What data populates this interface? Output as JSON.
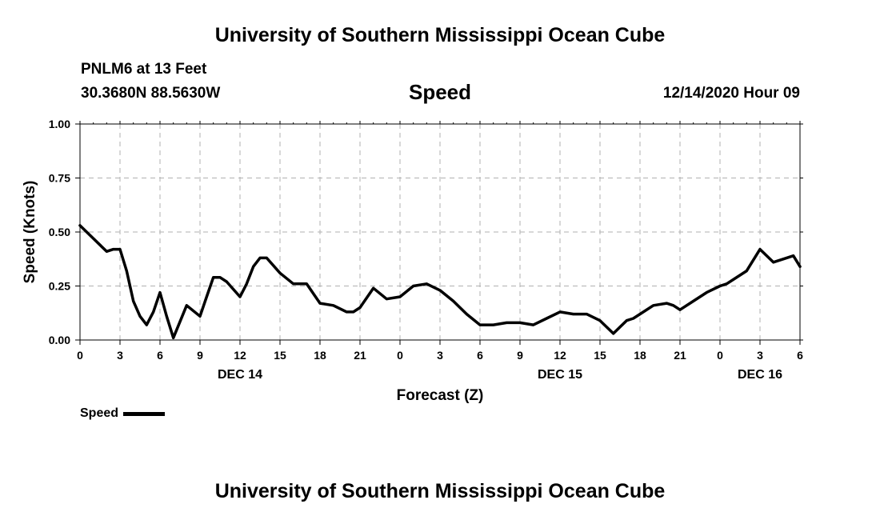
{
  "header": {
    "title_top": "University of Southern Mississippi Ocean Cube",
    "station": "PNLM6 at 13 Feet",
    "coords": "30.3680N 88.5630W",
    "variable": "Speed",
    "issued": "12/14/2020 Hour 09"
  },
  "footer": {
    "title_bottom": "University of Southern Mississippi Ocean Cube"
  },
  "legend": {
    "label": "Speed",
    "color": "#000000"
  },
  "chart_data": {
    "type": "line",
    "title": "Speed",
    "xlabel": "Forecast (Z)",
    "ylabel": "Speed (Knots)",
    "xlim": [
      0,
      54
    ],
    "ylim": [
      0,
      1
    ],
    "grid": true,
    "legend_position": "bottom-left",
    "x_ticks": [
      0,
      3,
      6,
      9,
      12,
      15,
      18,
      21,
      24,
      27,
      30,
      33,
      36,
      39,
      42,
      45,
      48,
      51,
      54
    ],
    "x_tick_labels": [
      "0",
      "3",
      "6",
      "9",
      "12",
      "15",
      "18",
      "21",
      "0",
      "3",
      "6",
      "9",
      "12",
      "15",
      "18",
      "21",
      "0",
      "3",
      "6"
    ],
    "y_ticks": [
      0,
      0.25,
      0.5,
      0.75,
      1
    ],
    "y_tick_labels": [
      "0.00",
      "0.25",
      "0.50",
      "0.75",
      "1.00"
    ],
    "day_labels": [
      {
        "x": 12,
        "label": "DEC 14"
      },
      {
        "x": 36,
        "label": "DEC 15"
      },
      {
        "x": 51,
        "label": "DEC 16"
      }
    ],
    "series": [
      {
        "name": "Speed",
        "color": "#000000",
        "x": [
          0,
          1,
          2,
          2.5,
          3,
          3.5,
          4,
          4.5,
          5,
          5.5,
          6,
          6.5,
          7,
          8,
          9,
          9.5,
          10,
          10.5,
          11,
          12,
          12.5,
          13,
          13.5,
          14,
          15,
          16,
          17,
          18,
          19,
          20,
          20.5,
          21,
          22,
          23,
          24,
          25,
          26,
          27,
          28,
          29,
          30,
          30.5,
          31,
          32,
          33,
          34,
          35,
          36,
          37,
          38,
          39,
          40,
          40.5,
          41,
          41.5,
          42,
          43,
          44,
          44.5,
          45,
          46,
          47,
          48,
          48.5,
          49,
          50,
          51,
          52,
          53,
          53.5,
          54
        ],
        "values": [
          0.53,
          0.47,
          0.41,
          0.42,
          0.42,
          0.32,
          0.18,
          0.11,
          0.07,
          0.13,
          0.22,
          0.11,
          0.01,
          0.16,
          0.11,
          0.2,
          0.29,
          0.29,
          0.27,
          0.2,
          0.26,
          0.34,
          0.38,
          0.38,
          0.31,
          0.26,
          0.26,
          0.17,
          0.16,
          0.13,
          0.13,
          0.15,
          0.24,
          0.19,
          0.2,
          0.25,
          0.26,
          0.23,
          0.18,
          0.12,
          0.07,
          0.07,
          0.07,
          0.08,
          0.08,
          0.07,
          0.1,
          0.13,
          0.12,
          0.12,
          0.09,
          0.03,
          0.06,
          0.09,
          0.1,
          0.12,
          0.16,
          0.17,
          0.16,
          0.14,
          0.18,
          0.22,
          0.25,
          0.26,
          0.28,
          0.32,
          0.42,
          0.36,
          0.38,
          0.39,
          0.34
        ]
      }
    ]
  }
}
